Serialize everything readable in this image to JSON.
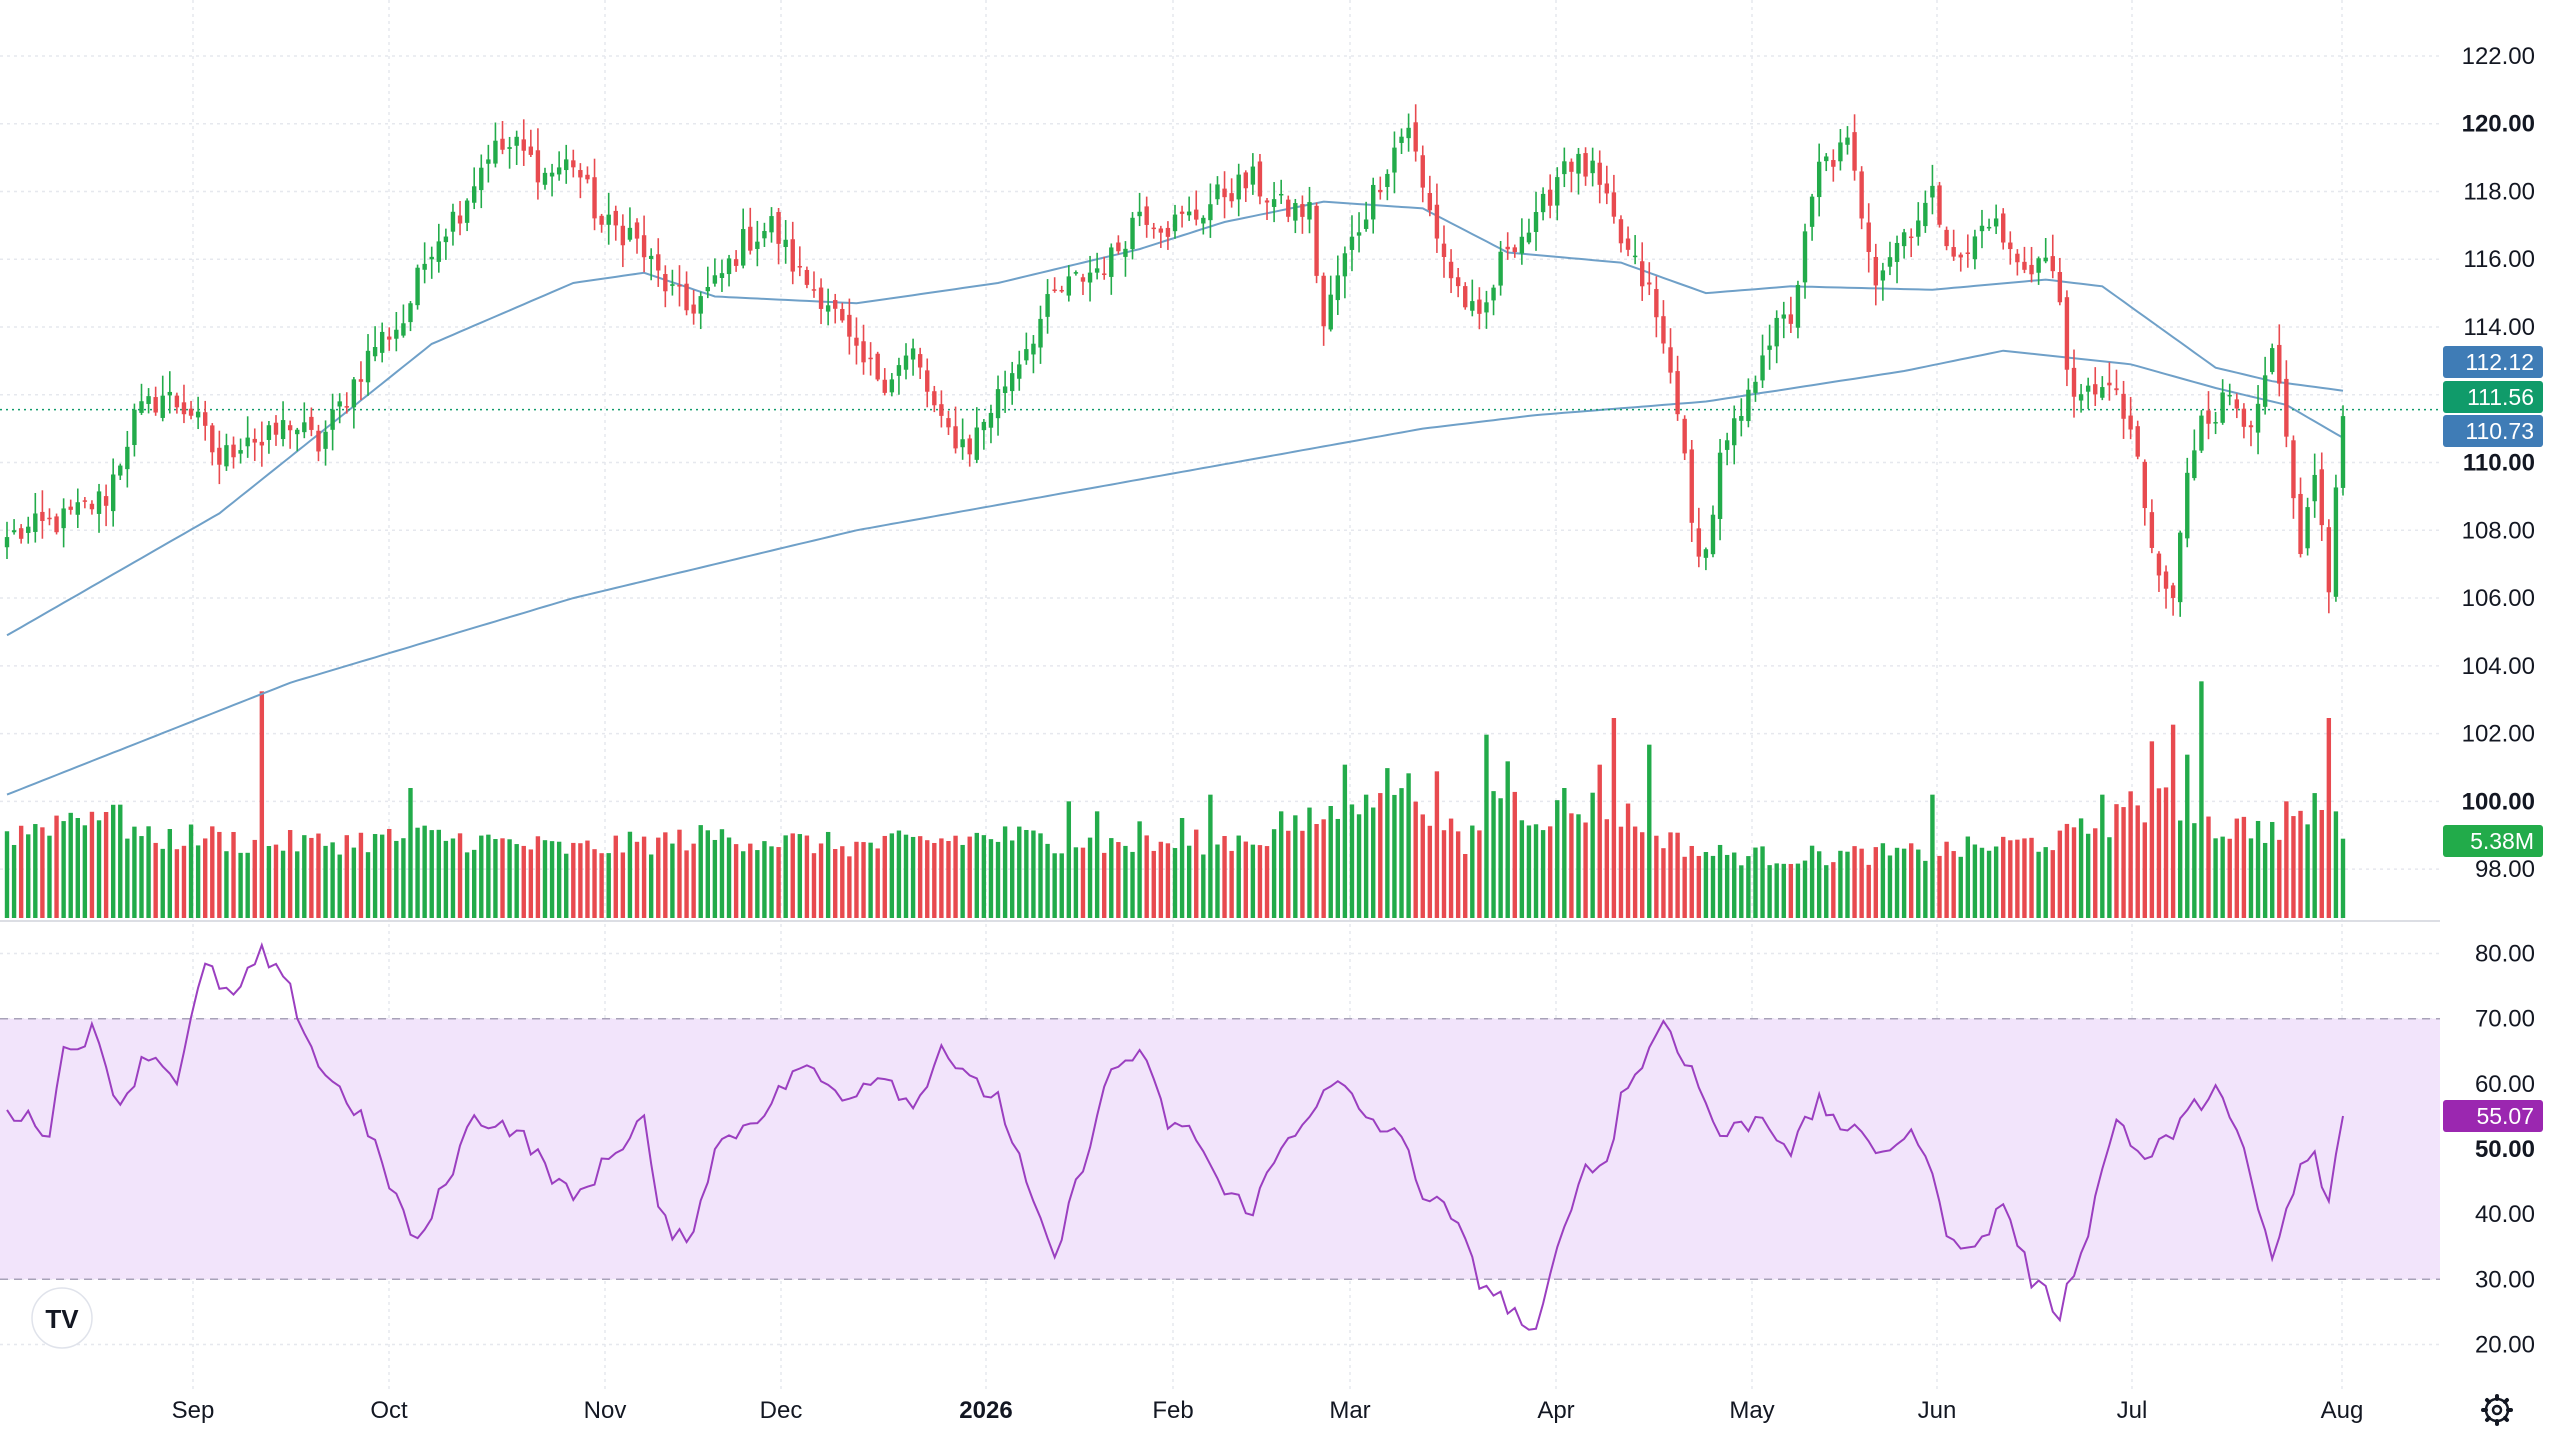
{
  "colors": {
    "up": "#22ab4a",
    "down": "#e84a4f",
    "ma_line": "#6fa0c8",
    "rsi_line": "#9b3fc0",
    "rsi_band": "#f2e4fb",
    "last_price": "#109b6a",
    "ma_tag": "#3f7cb6",
    "rsi_tag": "#9b27b0",
    "grid": "#e6e8ee",
    "price_line": "#109b6a"
  },
  "logo": {
    "icon": "tradingview-logo-icon",
    "text": "TV"
  },
  "settings": {
    "icon": "gear-icon"
  },
  "chart_data": [
    {
      "type": "candlestick",
      "name_hint": "price",
      "y_axis": {
        "range": [
          97,
          122.5
        ],
        "ticks": [
          "122.00",
          "120.00",
          "118.00",
          "116.00",
          "114.00",
          "112.00",
          "110.00",
          "108.00",
          "106.00",
          "104.00",
          "102.00",
          "100.00",
          "98.00"
        ],
        "bold_ticks": [
          "120.00",
          "110.00",
          "100.00"
        ]
      },
      "x_axis": {
        "labels": [
          "Sep",
          "Oct",
          "Nov",
          "Dec",
          "2026",
          "Feb",
          "Mar",
          "Apr",
          "May",
          "Jun",
          "Jul",
          "Aug"
        ],
        "bold_labels": [
          "2026"
        ]
      },
      "close_keys": [
        [
          0,
          107.8
        ],
        [
          8,
          108.3
        ],
        [
          14,
          109.0
        ],
        [
          18,
          111.3
        ],
        [
          22,
          112.0
        ],
        [
          26,
          111.5
        ],
        [
          30,
          110.0
        ],
        [
          34,
          110.9
        ],
        [
          36,
          110.5
        ],
        [
          40,
          111.2
        ],
        [
          44,
          110.5
        ],
        [
          48,
          112.0
        ],
        [
          52,
          113.5
        ],
        [
          56,
          114.2
        ],
        [
          60,
          116.5
        ],
        [
          64,
          117.5
        ],
        [
          68,
          119.2
        ],
        [
          72,
          119.3
        ],
        [
          76,
          118.5
        ],
        [
          80,
          118.9
        ],
        [
          84,
          117.0
        ],
        [
          88,
          116.8
        ],
        [
          92,
          115.5
        ],
        [
          96,
          114.5
        ],
        [
          100,
          115.2
        ],
        [
          104,
          116.5
        ],
        [
          108,
          117.0
        ],
        [
          112,
          115.5
        ],
        [
          116,
          114.8
        ],
        [
          120,
          113.0
        ],
        [
          124,
          112.5
        ],
        [
          128,
          113.2
        ],
        [
          132,
          111.0
        ],
        [
          136,
          110.5
        ],
        [
          140,
          112.0
        ],
        [
          144,
          113.5
        ],
        [
          148,
          114.9
        ],
        [
          152,
          115.5
        ],
        [
          156,
          116.0
        ],
        [
          160,
          117.5
        ],
        [
          164,
          117.0
        ],
        [
          168,
          117.3
        ],
        [
          172,
          118.0
        ],
        [
          176,
          118.3
        ],
        [
          180,
          117.5
        ],
        [
          184,
          117.4
        ],
        [
          186,
          114.0
        ],
        [
          188,
          115.5
        ],
        [
          192,
          117.5
        ],
        [
          196,
          119.3
        ],
        [
          198,
          120.0
        ],
        [
          200,
          118.0
        ],
        [
          204,
          115.5
        ],
        [
          208,
          114.0
        ],
        [
          212,
          116.5
        ],
        [
          216,
          117.0
        ],
        [
          220,
          119.0
        ],
        [
          224,
          118.5
        ],
        [
          228,
          116.5
        ],
        [
          232,
          115.0
        ],
        [
          236,
          111.8
        ],
        [
          238,
          108.0
        ],
        [
          240,
          107.3
        ],
        [
          242,
          110.0
        ],
        [
          246,
          111.8
        ],
        [
          248,
          113.5
        ],
        [
          252,
          114.3
        ],
        [
          256,
          118.7
        ],
        [
          260,
          119.3
        ],
        [
          264,
          115.6
        ],
        [
          268,
          116.8
        ],
        [
          272,
          117.8
        ],
        [
          276,
          115.8
        ],
        [
          280,
          117.3
        ],
        [
          284,
          115.8
        ],
        [
          288,
          116.0
        ],
        [
          290,
          114.8
        ],
        [
          292,
          111.5
        ],
        [
          296,
          112.5
        ],
        [
          300,
          111.0
        ],
        [
          302,
          108.5
        ],
        [
          304,
          106.5
        ],
        [
          306,
          106.0
        ],
        [
          308,
          109.5
        ],
        [
          310,
          111.6
        ],
        [
          312,
          111.5
        ],
        [
          314,
          112.0
        ],
        [
          316,
          111.5
        ],
        [
          318,
          111.3
        ],
        [
          320,
          113.3
        ],
        [
          322,
          110.5
        ],
        [
          324,
          107.0
        ],
        [
          326,
          109.5
        ],
        [
          328,
          106.5
        ],
        [
          330,
          111.5
        ]
      ],
      "volume": {
        "ymax": 7.5,
        "keys": [
          [
            0,
            2.4
          ],
          [
            12,
            3.2
          ],
          [
            20,
            2.3
          ],
          [
            28,
            2.4
          ],
          [
            34,
            2.2
          ],
          [
            44,
            2.2
          ],
          [
            60,
            2.4
          ],
          [
            80,
            2.0
          ],
          [
            100,
            2.4
          ],
          [
            120,
            2.1
          ],
          [
            140,
            2.4
          ],
          [
            160,
            2.1
          ],
          [
            180,
            2.4
          ],
          [
            196,
            4.0
          ],
          [
            200,
            3.5
          ],
          [
            206,
            2.0
          ],
          [
            210,
            3.8
          ],
          [
            216,
            3.0
          ],
          [
            226,
            3.3
          ],
          [
            236,
            2.2
          ],
          [
            240,
            1.9
          ],
          [
            250,
            1.8
          ],
          [
            270,
            1.9
          ],
          [
            290,
            2.3
          ],
          [
            298,
            2.9
          ],
          [
            306,
            3.4
          ],
          [
            312,
            2.6
          ],
          [
            318,
            2.7
          ],
          [
            322,
            2.3
          ],
          [
            326,
            3.4
          ],
          [
            330,
            2.6
          ]
        ],
        "spikes": [
          [
            10,
            3.0
          ],
          [
            16,
            3.4
          ],
          [
            36,
            6.8
          ],
          [
            57,
            3.9
          ],
          [
            150,
            3.5
          ],
          [
            154,
            3.2
          ],
          [
            160,
            2.9
          ],
          [
            166,
            3.0
          ],
          [
            170,
            3.7
          ],
          [
            180,
            3.2
          ],
          [
            189,
            4.6
          ],
          [
            192,
            3.7
          ],
          [
            202,
            4.4
          ],
          [
            209,
            5.5
          ],
          [
            212,
            4.7
          ],
          [
            220,
            3.9
          ],
          [
            225,
            4.6
          ],
          [
            227,
            6.0
          ],
          [
            232,
            5.2
          ],
          [
            272,
            3.7
          ],
          [
            296,
            3.7
          ],
          [
            300,
            3.8
          ],
          [
            303,
            5.3
          ],
          [
            306,
            5.8
          ],
          [
            308,
            4.9
          ],
          [
            310,
            7.1
          ],
          [
            322,
            3.5
          ],
          [
            328,
            6.0
          ],
          [
            331,
            5.0
          ]
        ]
      },
      "ma_fast": {
        "keys": [
          [
            0,
            104.9
          ],
          [
            30,
            108.5
          ],
          [
            60,
            113.5
          ],
          [
            80,
            115.3
          ],
          [
            90,
            115.6
          ],
          [
            100,
            114.9
          ],
          [
            120,
            114.7
          ],
          [
            140,
            115.3
          ],
          [
            160,
            116.3
          ],
          [
            172,
            117.1
          ],
          [
            186,
            117.7
          ],
          [
            200,
            117.5
          ],
          [
            212,
            116.2
          ],
          [
            228,
            115.9
          ],
          [
            240,
            115.0
          ],
          [
            252,
            115.2
          ],
          [
            272,
            115.1
          ],
          [
            288,
            115.4
          ],
          [
            296,
            115.2
          ],
          [
            312,
            112.8
          ],
          [
            320,
            112.4
          ],
          [
            330,
            112.12
          ]
        ]
      },
      "ma_slow": {
        "keys": [
          [
            0,
            100.2
          ],
          [
            40,
            103.5
          ],
          [
            80,
            106.0
          ],
          [
            120,
            108.0
          ],
          [
            160,
            109.5
          ],
          [
            200,
            111.0
          ],
          [
            216,
            111.4
          ],
          [
            240,
            111.8
          ],
          [
            268,
            112.7
          ],
          [
            282,
            113.3
          ],
          [
            300,
            112.9
          ],
          [
            312,
            112.2
          ],
          [
            322,
            111.7
          ],
          [
            330,
            110.73
          ]
        ]
      },
      "tags": {
        "ma_fast_value": "112.12",
        "last_price_value": "111.56",
        "ma_slow_value": "110.73",
        "volume_value": "5.38M"
      }
    },
    {
      "type": "line",
      "name_hint": "rsi",
      "y_axis": {
        "range": [
          17,
          83
        ],
        "ticks": [
          "80.00",
          "70.00",
          "60.00",
          "50.00",
          "40.00",
          "30.00",
          "20.00"
        ],
        "bold_ticks": [
          "50.00"
        ]
      },
      "band": [
        30,
        70
      ],
      "keys": [
        [
          0,
          56
        ],
        [
          6,
          53
        ],
        [
          8,
          65
        ],
        [
          12,
          68
        ],
        [
          16,
          57
        ],
        [
          20,
          65
        ],
        [
          24,
          61
        ],
        [
          28,
          78
        ],
        [
          32,
          73
        ],
        [
          36,
          80
        ],
        [
          40,
          74
        ],
        [
          44,
          63
        ],
        [
          50,
          55
        ],
        [
          58,
          35
        ],
        [
          62,
          45
        ],
        [
          66,
          55
        ],
        [
          72,
          53
        ],
        [
          80,
          42
        ],
        [
          90,
          55
        ],
        [
          92,
          40
        ],
        [
          96,
          35
        ],
        [
          100,
          50
        ],
        [
          108,
          57
        ],
        [
          112,
          63
        ],
        [
          118,
          58
        ],
        [
          124,
          62
        ],
        [
          128,
          56
        ],
        [
          132,
          66
        ],
        [
          136,
          60
        ],
        [
          140,
          58
        ],
        [
          146,
          38
        ],
        [
          148,
          33
        ],
        [
          152,
          48
        ],
        [
          156,
          62
        ],
        [
          160,
          65
        ],
        [
          164,
          54
        ],
        [
          168,
          52
        ],
        [
          172,
          43
        ],
        [
          176,
          41
        ],
        [
          180,
          50
        ],
        [
          184,
          56
        ],
        [
          188,
          60
        ],
        [
          192,
          55
        ],
        [
          196,
          52
        ],
        [
          198,
          50
        ],
        [
          200,
          43
        ],
        [
          204,
          40
        ],
        [
          208,
          30
        ],
        [
          212,
          26
        ],
        [
          216,
          21
        ],
        [
          218,
          30
        ],
        [
          222,
          46
        ],
        [
          226,
          48
        ],
        [
          228,
          58
        ],
        [
          232,
          65
        ],
        [
          234,
          70
        ],
        [
          238,
          62
        ],
        [
          242,
          52
        ],
        [
          248,
          55
        ],
        [
          252,
          50
        ],
        [
          256,
          57
        ],
        [
          260,
          53
        ],
        [
          264,
          50
        ],
        [
          270,
          52
        ],
        [
          274,
          38
        ],
        [
          278,
          34
        ],
        [
          282,
          42
        ],
        [
          286,
          30
        ],
        [
          290,
          25
        ],
        [
          294,
          38
        ],
        [
          298,
          55
        ],
        [
          302,
          48
        ],
        [
          308,
          55
        ],
        [
          312,
          60
        ],
        [
          316,
          49
        ],
        [
          320,
          33
        ],
        [
          324,
          47
        ],
        [
          326,
          49
        ],
        [
          328,
          41
        ],
        [
          330,
          55.07
        ]
      ],
      "tag_value": "55.07"
    }
  ]
}
